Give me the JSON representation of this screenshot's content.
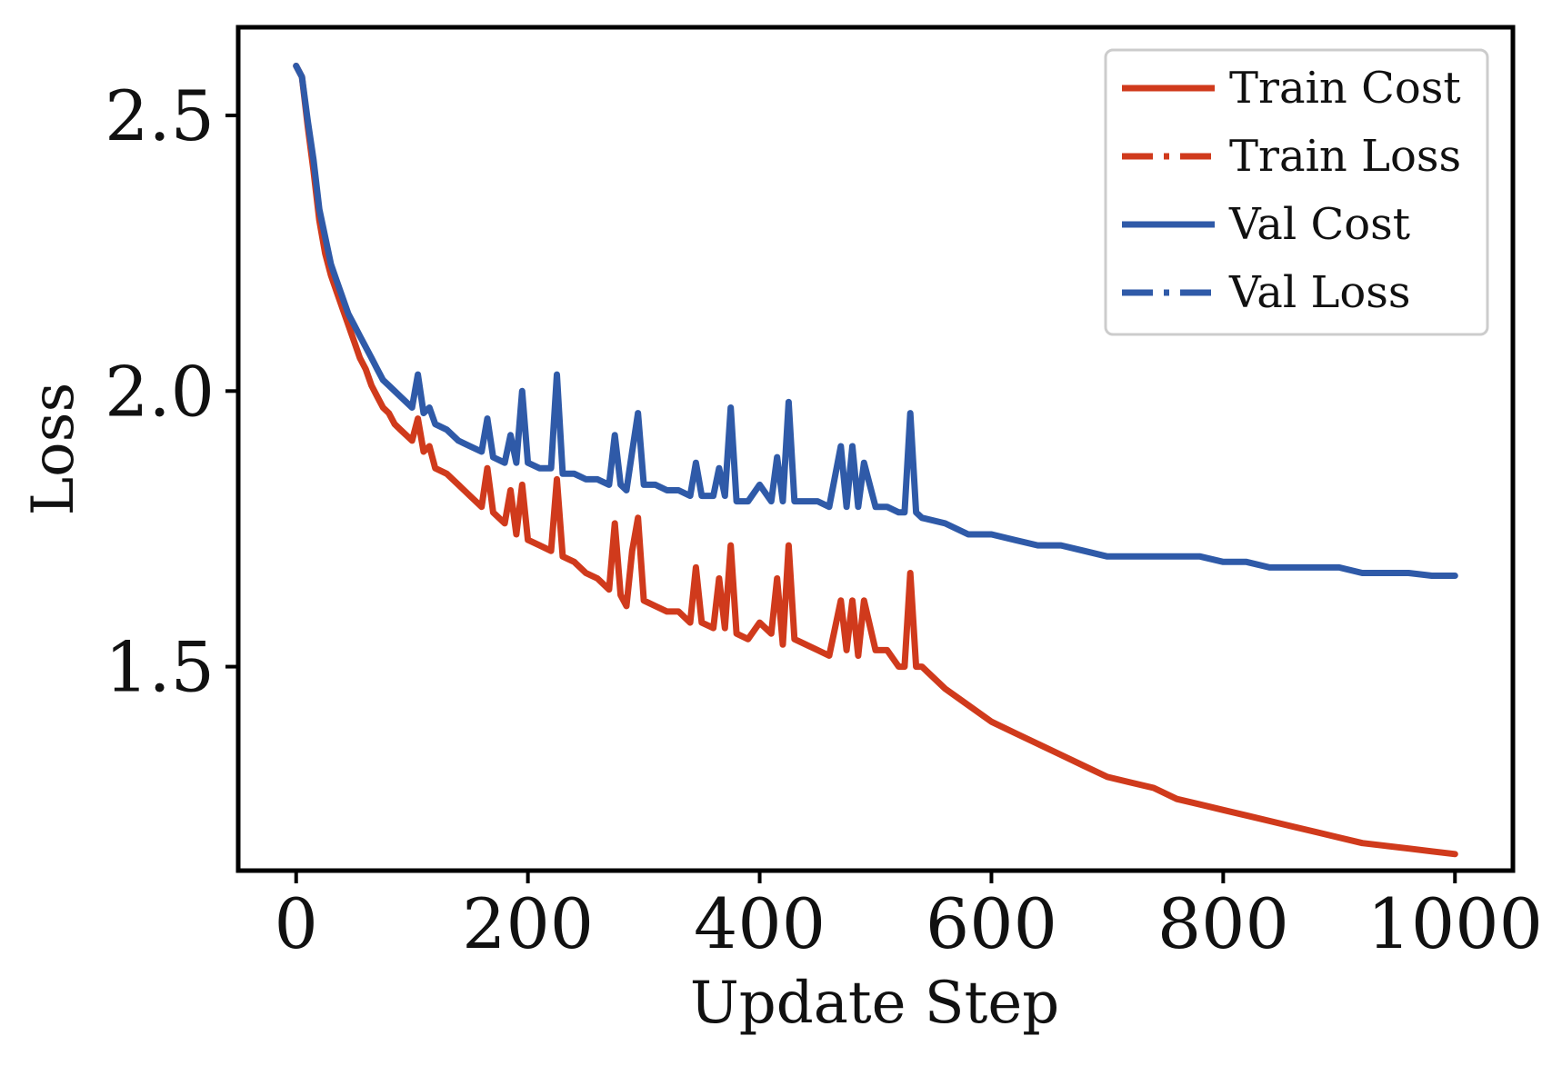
{
  "chart_data": {
    "type": "line",
    "title": "",
    "xlabel": "Update Step",
    "ylabel": "Loss",
    "xlim": [
      -50,
      1050
    ],
    "ylim": [
      1.13,
      2.66
    ],
    "xticks": [
      0,
      200,
      400,
      600,
      800,
      1000
    ],
    "yticks": [
      1.5,
      2.0,
      2.5
    ],
    "xtick_labels": [
      "0",
      "200",
      "400",
      "600",
      "800",
      "1000"
    ],
    "ytick_labels": [
      "1.5",
      "2.0",
      "2.5"
    ],
    "grid": false,
    "legend_position": "top-right",
    "legend": [
      {
        "label": "Train Cost",
        "color": "#d03a1c",
        "style": "solid"
      },
      {
        "label": "Train Loss",
        "color": "#d03a1c",
        "style": "dashed"
      },
      {
        "label": "Val Cost",
        "color": "#2f5aa8",
        "style": "solid"
      },
      {
        "label": "Val Loss",
        "color": "#2f5aa8",
        "style": "dashed"
      }
    ],
    "series": [
      {
        "name": "Train Cost",
        "color": "#d03a1c",
        "style": "solid",
        "x": [
          0,
          5,
          10,
          15,
          20,
          25,
          30,
          35,
          40,
          45,
          50,
          55,
          60,
          65,
          70,
          75,
          80,
          85,
          90,
          95,
          100,
          105,
          110,
          115,
          120,
          130,
          140,
          150,
          160,
          165,
          170,
          180,
          185,
          190,
          195,
          200,
          210,
          220,
          225,
          230,
          240,
          250,
          260,
          270,
          275,
          280,
          285,
          290,
          295,
          300,
          310,
          320,
          330,
          340,
          345,
          350,
          360,
          365,
          370,
          375,
          380,
          390,
          400,
          410,
          415,
          420,
          425,
          430,
          440,
          450,
          460,
          470,
          475,
          480,
          485,
          490,
          500,
          510,
          520,
          525,
          530,
          535,
          540,
          560,
          580,
          600,
          620,
          640,
          660,
          680,
          700,
          720,
          740,
          760,
          780,
          800,
          820,
          840,
          860,
          880,
          900,
          920,
          940,
          960,
          980,
          1000
        ],
        "y": [
          2.59,
          2.57,
          2.48,
          2.4,
          2.31,
          2.25,
          2.21,
          2.18,
          2.15,
          2.12,
          2.09,
          2.06,
          2.04,
          2.01,
          1.99,
          1.97,
          1.96,
          1.94,
          1.93,
          1.92,
          1.91,
          1.95,
          1.89,
          1.9,
          1.86,
          1.85,
          1.83,
          1.81,
          1.79,
          1.86,
          1.78,
          1.76,
          1.82,
          1.74,
          1.83,
          1.73,
          1.72,
          1.71,
          1.84,
          1.7,
          1.69,
          1.67,
          1.66,
          1.64,
          1.76,
          1.63,
          1.61,
          1.71,
          1.77,
          1.62,
          1.61,
          1.6,
          1.6,
          1.58,
          1.68,
          1.58,
          1.57,
          1.66,
          1.57,
          1.72,
          1.56,
          1.55,
          1.58,
          1.56,
          1.66,
          1.54,
          1.72,
          1.55,
          1.54,
          1.53,
          1.52,
          1.62,
          1.53,
          1.62,
          1.52,
          1.62,
          1.53,
          1.53,
          1.5,
          1.5,
          1.67,
          1.5,
          1.5,
          1.46,
          1.43,
          1.4,
          1.38,
          1.36,
          1.34,
          1.32,
          1.3,
          1.29,
          1.28,
          1.26,
          1.25,
          1.24,
          1.23,
          1.22,
          1.21,
          1.2,
          1.19,
          1.18,
          1.175,
          1.17,
          1.165,
          1.16
        ]
      },
      {
        "name": "Val Cost",
        "color": "#2f5aa8",
        "style": "solid",
        "x": [
          0,
          5,
          10,
          15,
          20,
          25,
          30,
          35,
          40,
          45,
          50,
          55,
          60,
          65,
          70,
          75,
          80,
          85,
          90,
          95,
          100,
          105,
          110,
          115,
          120,
          130,
          140,
          150,
          160,
          165,
          170,
          180,
          185,
          190,
          195,
          200,
          210,
          220,
          225,
          230,
          240,
          250,
          260,
          270,
          275,
          280,
          285,
          290,
          295,
          300,
          310,
          320,
          330,
          340,
          345,
          350,
          360,
          365,
          370,
          375,
          380,
          390,
          400,
          410,
          415,
          420,
          425,
          430,
          440,
          450,
          460,
          470,
          475,
          480,
          485,
          490,
          500,
          510,
          520,
          525,
          530,
          535,
          540,
          560,
          580,
          600,
          620,
          640,
          660,
          680,
          700,
          720,
          740,
          760,
          780,
          800,
          820,
          840,
          860,
          880,
          900,
          920,
          940,
          960,
          980,
          1000
        ],
        "y": [
          2.59,
          2.57,
          2.49,
          2.42,
          2.33,
          2.28,
          2.23,
          2.2,
          2.17,
          2.14,
          2.12,
          2.1,
          2.08,
          2.06,
          2.04,
          2.02,
          2.01,
          2.0,
          1.99,
          1.98,
          1.97,
          2.03,
          1.96,
          1.97,
          1.94,
          1.93,
          1.91,
          1.9,
          1.89,
          1.95,
          1.88,
          1.87,
          1.92,
          1.87,
          2.0,
          1.87,
          1.86,
          1.86,
          2.03,
          1.85,
          1.85,
          1.84,
          1.84,
          1.83,
          1.92,
          1.83,
          1.82,
          1.89,
          1.96,
          1.83,
          1.83,
          1.82,
          1.82,
          1.81,
          1.87,
          1.81,
          1.81,
          1.86,
          1.81,
          1.97,
          1.8,
          1.8,
          1.83,
          1.8,
          1.88,
          1.8,
          1.98,
          1.8,
          1.8,
          1.8,
          1.79,
          1.9,
          1.79,
          1.9,
          1.79,
          1.87,
          1.79,
          1.79,
          1.78,
          1.78,
          1.96,
          1.78,
          1.77,
          1.76,
          1.74,
          1.74,
          1.73,
          1.72,
          1.72,
          1.71,
          1.7,
          1.7,
          1.7,
          1.7,
          1.7,
          1.69,
          1.69,
          1.68,
          1.68,
          1.68,
          1.68,
          1.67,
          1.67,
          1.67,
          1.665,
          1.665
        ]
      }
    ]
  }
}
